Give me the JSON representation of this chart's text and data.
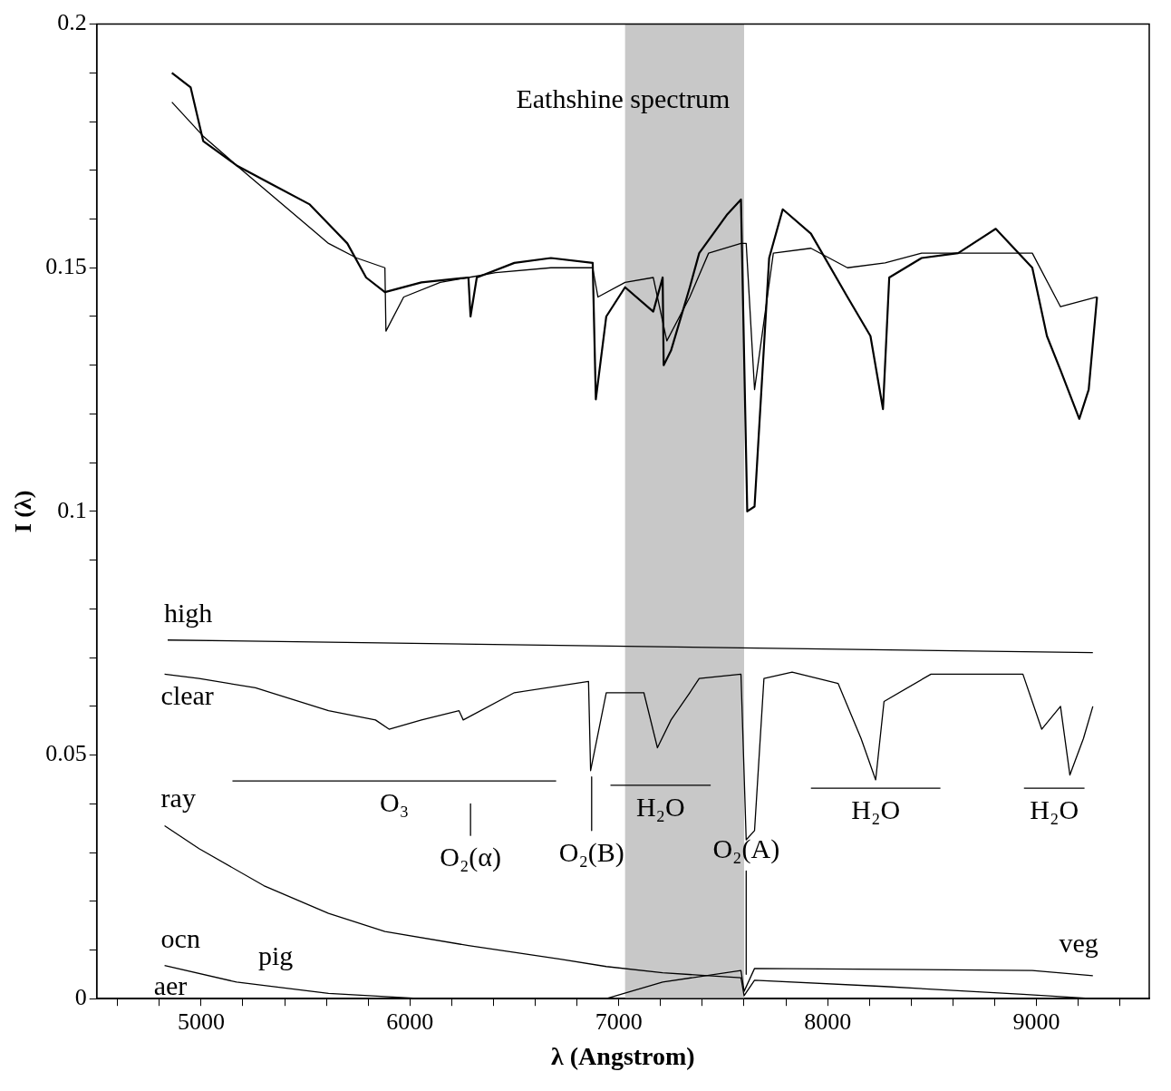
{
  "chart_data": {
    "type": "line",
    "title": "Eathshine spectrum",
    "xlabel": "λ (Angstrom)",
    "ylabel": "I (λ)",
    "xlim": [
      4500,
      9540
    ],
    "ylim": [
      0,
      0.2
    ],
    "xticks": [
      {
        "value": 4600,
        "label": null
      },
      {
        "value": 4800,
        "label": null
      },
      5000,
      {
        "value": 5200,
        "label": null
      },
      {
        "value": 5400,
        "label": null
      },
      {
        "value": 5600,
        "label": null
      },
      {
        "value": 5800,
        "label": null
      },
      6000,
      {
        "value": 6200,
        "label": null
      },
      {
        "value": 6400,
        "label": null
      },
      {
        "value": 6600,
        "label": null
      },
      {
        "value": 6800,
        "label": null
      },
      7000,
      {
        "value": 7200,
        "label": null
      },
      {
        "value": 7400,
        "label": null
      },
      {
        "value": 7600,
        "label": null
      },
      {
        "value": 7800,
        "label": null
      },
      8000,
      {
        "value": 8200,
        "label": null
      },
      {
        "value": 8400,
        "label": null
      },
      {
        "value": 8600,
        "label": null
      },
      {
        "value": 8800,
        "label": null
      },
      9000,
      {
        "value": 9200,
        "label": null
      },
      {
        "value": 9400,
        "label": null
      }
    ],
    "yticks": [
      0,
      {
        "value": 0.01,
        "label": null
      },
      {
        "value": 0.02,
        "label": null
      },
      {
        "value": 0.03,
        "label": null
      },
      {
        "value": 0.04,
        "label": null
      },
      0.05,
      {
        "value": 0.06,
        "label": null
      },
      {
        "value": 0.07,
        "label": null
      },
      {
        "value": 0.08,
        "label": null
      },
      {
        "value": 0.09,
        "label": null
      },
      0.1,
      {
        "value": 0.11,
        "label": null
      },
      {
        "value": 0.12,
        "label": null
      },
      {
        "value": 0.13,
        "label": null
      },
      {
        "value": 0.14,
        "label": null
      },
      0.15,
      {
        "value": 0.16,
        "label": null
      },
      {
        "value": 0.17,
        "label": null
      },
      {
        "value": 0.18,
        "label": null
      },
      {
        "value": 0.19,
        "label": null
      },
      0.2
    ],
    "marker": "none",
    "line_style": "solid",
    "legend": "left",
    "bands": [
      {
        "axis": "x",
        "from": 7030,
        "to": 7600,
        "color": "#c8c8c8"
      }
    ],
    "series": [
      {
        "color": "#000000",
        "x": [
          4860,
          4950,
          5010,
          5170,
          5345,
          5520,
          5700,
          5790,
          5880,
          6055,
          6280,
          6290,
          6320,
          6500,
          6675,
          6875,
          6890,
          6940,
          7030,
          7165,
          7210,
          7215,
          7250,
          7340,
          7385,
          7520,
          7585,
          7615,
          7650,
          7720,
          7785,
          7920,
          8095,
          8205,
          8265,
          8295,
          8450,
          8625,
          8805,
          8980,
          9050,
          9115,
          9205,
          9250,
          9290
        ],
        "values": [
          0.19,
          0.187,
          0.176,
          0.171,
          0.167,
          0.163,
          0.155,
          0.148,
          0.145,
          0.147,
          0.148,
          0.14,
          0.148,
          0.151,
          0.152,
          0.151,
          0.123,
          0.14,
          0.146,
          0.141,
          0.148,
          0.13,
          0.133,
          0.146,
          0.153,
          0.161,
          0.164,
          0.1,
          0.101,
          0.152,
          0.162,
          0.157,
          0.144,
          0.136,
          0.121,
          0.148,
          0.152,
          0.153,
          0.158,
          0.15,
          0.136,
          0.129,
          0.119,
          0.125,
          0.144
        ]
      },
      {
        "color": "#000000",
        "x": [
          4860,
          5010,
          5170,
          5610,
          5745,
          5880,
          5885,
          5970,
          6145,
          6280,
          6410,
          6675,
          6875,
          6900,
          7030,
          7165,
          7230,
          7340,
          7430,
          7585,
          7610,
          7650,
          7740,
          7920,
          8095,
          8275,
          8450,
          8980,
          9115,
          9290
        ],
        "values": [
          0.184,
          0.177,
          0.171,
          0.155,
          0.152,
          0.15,
          0.137,
          0.144,
          0.147,
          0.148,
          0.149,
          0.15,
          0.15,
          0.144,
          0.147,
          0.148,
          0.135,
          0.144,
          0.153,
          0.155,
          0.155,
          0.125,
          0.153,
          0.154,
          0.15,
          0.151,
          0.153,
          0.153,
          0.142,
          0.144
        ]
      },
      {
        "name": "high",
        "color": "#000000",
        "x": [
          4840,
          9270
        ],
        "values": [
          0.0736,
          0.071
        ]
      },
      {
        "name": "clear",
        "color": "#000000",
        "x": [
          4825,
          4990,
          5260,
          5610,
          5835,
          5900,
          6055,
          6235,
          6255,
          6500,
          6855,
          6865,
          6940,
          7120,
          7185,
          7250,
          7340,
          7385,
          7585,
          7610,
          7650,
          7695,
          7830,
          8050,
          8160,
          8230,
          8270,
          8495,
          8935,
          9025,
          9115,
          9160,
          9225,
          9270
        ],
        "values": [
          0.0666,
          0.0657,
          0.0638,
          0.0591,
          0.0572,
          0.0553,
          0.0572,
          0.0591,
          0.0572,
          0.0628,
          0.0651,
          0.0468,
          0.0628,
          0.0628,
          0.0515,
          0.0572,
          0.0628,
          0.0657,
          0.0666,
          0.0326,
          0.0345,
          0.0657,
          0.067,
          0.0647,
          0.0534,
          0.0449,
          0.061,
          0.0666,
          0.0666,
          0.0553,
          0.06,
          0.0459,
          0.0534,
          0.06
        ]
      },
      {
        "name": "ray",
        "color": "#000000",
        "x": [
          4825,
          4990,
          5300,
          5610,
          5880,
          6280,
          6720,
          6940,
          7210,
          7585,
          7600,
          7650,
          8270,
          8935,
          9270
        ],
        "values": [
          0.0355,
          0.0308,
          0.0232,
          0.0175,
          0.0138,
          0.0109,
          0.0081,
          0.0066,
          0.0053,
          0.0043,
          0.0006,
          0.0038,
          0.0025,
          0.0009,
          0
        ]
      },
      {
        "name": "veg",
        "color": "#000000",
        "x": [
          6940,
          7210,
          7585,
          7600,
          7650,
          8980,
          9270
        ],
        "values": [
          0,
          0.0034,
          0.0058,
          0.0015,
          0.0062,
          0.0058,
          0.0047
        ]
      },
      {
        "name": "ocn",
        "color": "#000000",
        "x": [
          4825,
          5170,
          5610,
          6055
        ],
        "values": [
          0.0068,
          0.0034,
          0.0011,
          0
        ]
      },
      {
        "name": "O₃",
        "color": "#000000",
        "x": [
          5150,
          6700
        ],
        "values": [
          0.0447,
          0.0447
        ]
      },
      {
        "name": "H₂O",
        "color": "#000000",
        "x": [
          6960,
          7440
        ],
        "values": [
          0.0438,
          0.0438
        ]
      },
      {
        "name": "H₂O",
        "color": "#000000",
        "x": [
          7920,
          8540
        ],
        "values": [
          0.0432,
          0.0432
        ]
      },
      {
        "name": "H₂O",
        "color": "#000000",
        "x": [
          8940,
          9230
        ],
        "values": [
          0.0432,
          0.0432
        ]
      },
      {
        "name": "O₂(α)",
        "color": "#000000",
        "x": [
          6290,
          6290
        ],
        "values": [
          0.04,
          0.0335
        ]
      },
      {
        "name": "O₂(B)",
        "color": "#000000",
        "x": [
          6870,
          6870
        ],
        "values": [
          0.0455,
          0.0345
        ]
      },
      {
        "name": "O₂(A)",
        "color": "#000000",
        "x": [
          7610,
          7610
        ],
        "values": [
          0.0262,
          0.005
        ]
      }
    ],
    "annotations": [
      "pig",
      "aer"
    ]
  }
}
